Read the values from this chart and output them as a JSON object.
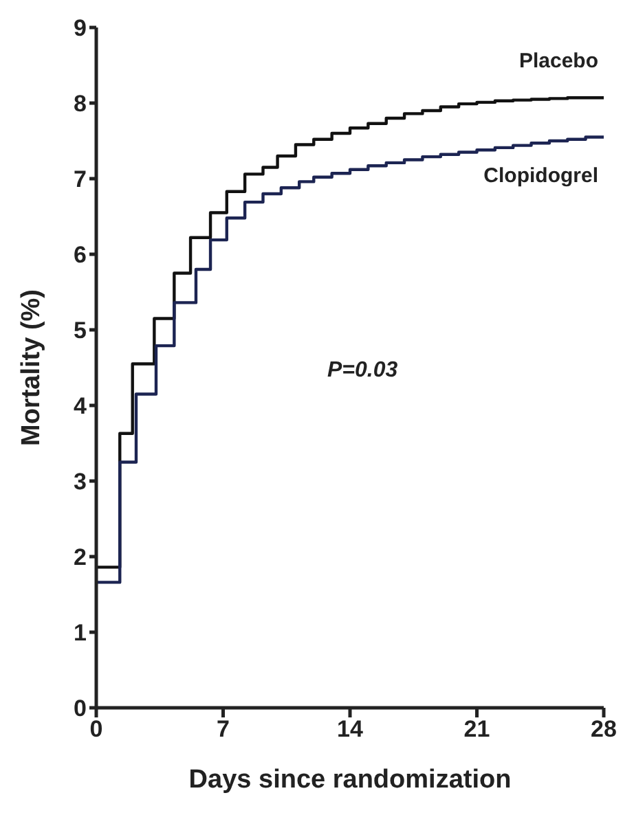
{
  "chart_data": {
    "type": "step",
    "xlabel": "Days since randomization",
    "ylabel": "Mortality (%)",
    "xlim": [
      0,
      28
    ],
    "xticks": [
      0,
      7,
      14,
      21,
      28
    ],
    "ylim": [
      0,
      9
    ],
    "yticks": [
      0,
      1,
      2,
      3,
      4,
      5,
      6,
      7,
      8,
      9
    ],
    "grid": false,
    "legend": false,
    "marker": "none",
    "line_style": "solid",
    "annotations": [
      "P=0.03"
    ],
    "series": [
      {
        "name": "Placebo",
        "color": "#111111",
        "x": [
          0,
          1.3,
          2,
          3.2,
          4.3,
          5.2,
          6.3,
          7.2,
          8.2,
          9.2,
          10,
          11,
          12,
          13,
          14,
          15,
          16,
          17,
          18,
          19,
          20,
          21,
          22,
          23,
          24,
          25,
          26,
          27,
          28
        ],
        "values": [
          1.86,
          3.63,
          4.55,
          5.15,
          5.75,
          6.22,
          6.55,
          6.83,
          7.06,
          7.15,
          7.3,
          7.45,
          7.52,
          7.6,
          7.67,
          7.73,
          7.8,
          7.86,
          7.9,
          7.95,
          7.99,
          8.01,
          8.03,
          8.04,
          8.05,
          8.06,
          8.07,
          8.07,
          8.07
        ]
      },
      {
        "name": "Clopidogrel",
        "color": "#1c2452",
        "x": [
          0,
          1.3,
          2.2,
          3.3,
          4.3,
          5.5,
          6.3,
          7.2,
          8.2,
          9.2,
          10.2,
          11.2,
          12,
          13,
          14,
          15,
          16,
          17,
          18,
          19,
          20,
          21,
          22,
          23,
          24,
          25,
          26,
          27,
          28
        ],
        "values": [
          1.66,
          3.25,
          4.15,
          4.79,
          5.36,
          5.8,
          6.19,
          6.48,
          6.69,
          6.8,
          6.88,
          6.96,
          7.02,
          7.07,
          7.12,
          7.17,
          7.21,
          7.25,
          7.29,
          7.32,
          7.35,
          7.38,
          7.41,
          7.44,
          7.47,
          7.5,
          7.52,
          7.55,
          7.57
        ]
      }
    ]
  }
}
